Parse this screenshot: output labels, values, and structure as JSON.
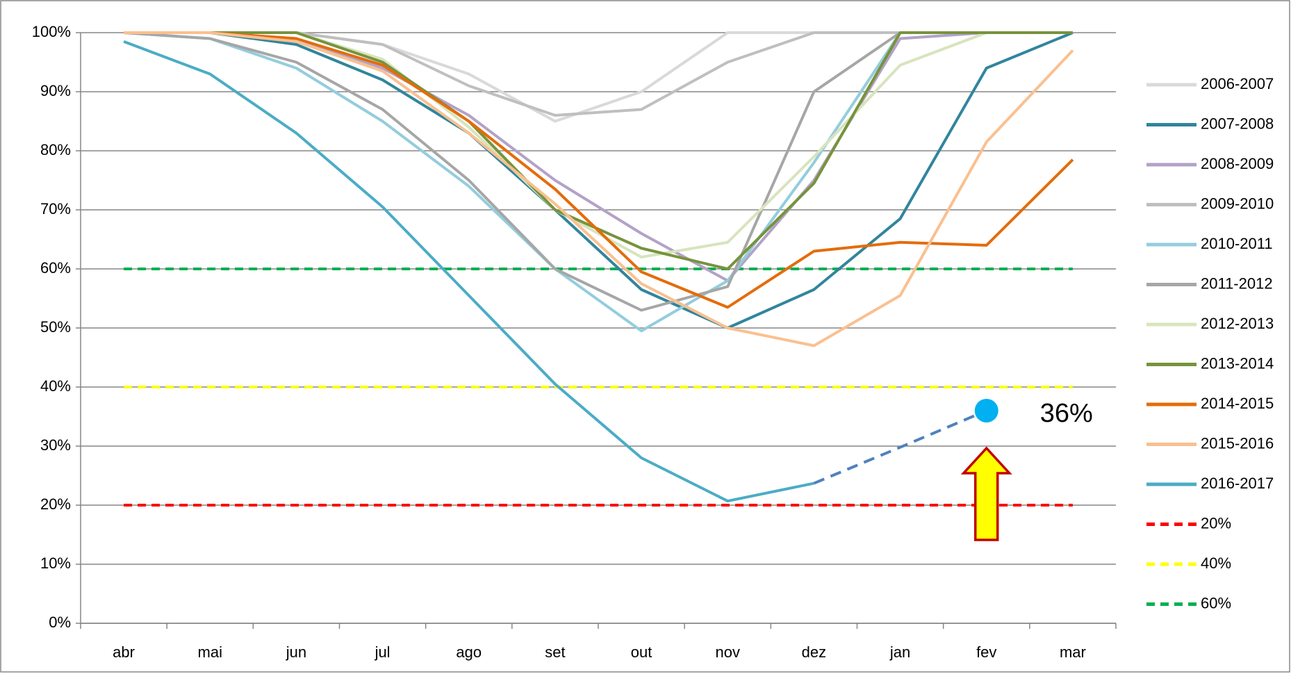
{
  "chart_data": {
    "type": "line",
    "categories": [
      "abr",
      "mai",
      "jun",
      "jul",
      "ago",
      "set",
      "out",
      "nov",
      "dez",
      "jan",
      "fev",
      "mar"
    ],
    "ylim": [
      0,
      100
    ],
    "yticks": [
      {
        "value": 0,
        "label": "0%"
      },
      {
        "value": 10,
        "label": "10%"
      },
      {
        "value": 20,
        "label": "20%"
      },
      {
        "value": 30,
        "label": "30%"
      },
      {
        "value": 40,
        "label": "40%"
      },
      {
        "value": 50,
        "label": "50%"
      },
      {
        "value": 60,
        "label": "60%"
      },
      {
        "value": 70,
        "label": "70%"
      },
      {
        "value": 80,
        "label": "80%"
      },
      {
        "value": 90,
        "label": "90%"
      },
      {
        "value": 100,
        "label": "100%"
      }
    ],
    "grid": true,
    "legend": "right",
    "series": [
      {
        "name": "2006-2007",
        "color": "#d9d9d9",
        "values": [
          100,
          100,
          100,
          98,
          93,
          85,
          90,
          100,
          100,
          100,
          100,
          100
        ]
      },
      {
        "name": "2007-2008",
        "color": "#31859c",
        "values": [
          100,
          100,
          98,
          92,
          83,
          70,
          56.5,
          50,
          56.5,
          68.5,
          94,
          100
        ]
      },
      {
        "name": "2008-2009",
        "color": "#b3a2c7",
        "values": [
          100,
          100,
          99,
          94,
          86,
          75,
          66,
          58,
          75,
          99,
          100,
          100
        ]
      },
      {
        "name": "2009-2010",
        "color": "#bfbfbf",
        "values": [
          100,
          100,
          100,
          98,
          91,
          86,
          87,
          95,
          100,
          100,
          100,
          100
        ]
      },
      {
        "name": "2010-2011",
        "color": "#93cddd",
        "values": [
          100,
          99,
          94,
          85,
          74,
          60,
          49.5,
          58,
          78,
          100,
          100,
          100
        ]
      },
      {
        "name": "2011-2012",
        "color": "#a6a6a6",
        "values": [
          100,
          99,
          95,
          87,
          75,
          60,
          53,
          57,
          90,
          100,
          100,
          100
        ]
      },
      {
        "name": "2012-2013",
        "color": "#d7e4bd",
        "values": [
          100,
          100,
          100,
          95.5,
          84,
          70,
          62,
          64.5,
          79,
          94.5,
          100,
          100
        ]
      },
      {
        "name": "2013-2014",
        "color": "#77933c",
        "values": [
          100,
          100,
          100,
          95,
          85,
          70,
          63.5,
          60,
          74.5,
          100,
          100,
          100
        ]
      },
      {
        "name": "2014-2015",
        "color": "#e46c0a",
        "values": [
          100,
          100,
          99,
          94.5,
          85,
          73.5,
          59.5,
          53.5,
          63,
          64.5,
          64,
          78.5
        ]
      },
      {
        "name": "2015-2016",
        "color": "#fac090",
        "values": [
          100,
          100,
          98.5,
          93.5,
          83,
          71,
          57.5,
          50,
          47,
          55.5,
          81.5,
          97
        ]
      },
      {
        "name": "2016-2017",
        "color": "#4bacc6",
        "values": [
          98.5,
          93,
          83,
          70.5,
          55.5,
          40.5,
          28,
          20.7,
          23.7,
          null,
          null,
          null
        ]
      },
      {
        "name": "20%",
        "color": "#ff0000",
        "dashed": true,
        "values": [
          20,
          20,
          20,
          20,
          20,
          20,
          20,
          20,
          20,
          20,
          20,
          20
        ]
      },
      {
        "name": "40%",
        "color": "#ffff00",
        "dashed": true,
        "values": [
          40,
          40,
          40,
          40,
          40,
          40,
          40,
          40,
          40,
          40,
          40,
          40
        ]
      },
      {
        "name": "60%",
        "color": "#00b050",
        "dashed": true,
        "values": [
          60,
          60,
          60,
          60,
          60,
          60,
          60,
          60,
          60,
          60,
          60,
          60
        ]
      }
    ],
    "projection": {
      "color": "#4f81bd",
      "values": [
        null,
        null,
        null,
        null,
        null,
        null,
        null,
        null,
        23.7,
        29.8,
        36,
        null
      ]
    },
    "marker": {
      "category": "fev",
      "value": 36,
      "value_label": "36%",
      "color": "#00b0f0"
    }
  }
}
